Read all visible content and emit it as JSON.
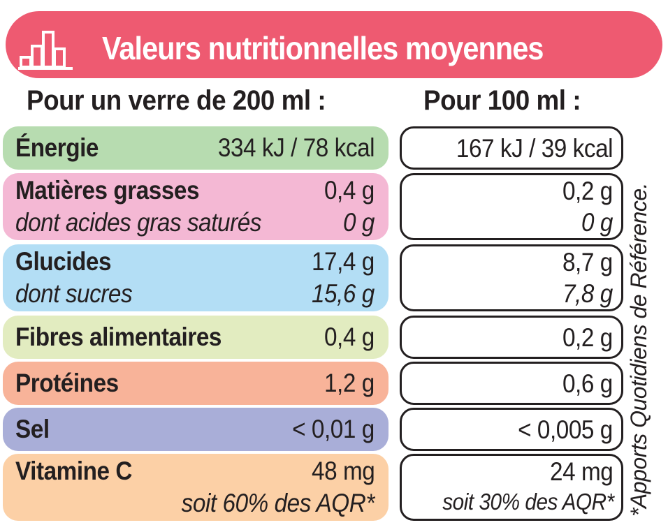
{
  "header": {
    "title": "Valeurs nutritionnelles moyennes",
    "icon": "bar-chart-icon",
    "color": "#ee5a71"
  },
  "columns": {
    "per_glass": "Pour un verre de 200 ml :",
    "per_100ml": "Pour 100 ml :"
  },
  "rows": [
    {
      "label": "Énergie",
      "glass": "334 kJ / 78 kcal",
      "per100": "167 kJ / 39 kcal",
      "color": "#b7dcb0"
    },
    {
      "label": "Matières grasses",
      "glass": "0,4 g",
      "per100": "0,2 g",
      "sub_label": "dont acides gras saturés",
      "sub_glass": "0 g",
      "sub_per100": "0 g",
      "color": "#f4b8d4"
    },
    {
      "label": "Glucides",
      "glass": "17,4 g",
      "per100": "8,7 g",
      "sub_label": "dont sucres",
      "sub_glass": "15,6 g",
      "sub_per100": "7,8 g",
      "color": "#b3def5"
    },
    {
      "label": "Fibres alimentaires",
      "glass": "0,4 g",
      "per100": "0,2 g",
      "color": "#e2ecc0"
    },
    {
      "label": "Protéines",
      "glass": "1,2 g",
      "per100": "0,6 g",
      "color": "#f8b399"
    },
    {
      "label": "Sel",
      "glass": "< 0,01 g",
      "per100": "< 0,005 g",
      "color": "#a9aed8"
    },
    {
      "label": "Vitamine C",
      "glass": "48 mg",
      "per100": "24 mg",
      "sub_glass": "soit 60% des AQR*",
      "sub_per100": "soit 30% des AQR*",
      "color": "#fcd0a6"
    }
  ],
  "footnote": "*Apports Quotidiens de Référence."
}
